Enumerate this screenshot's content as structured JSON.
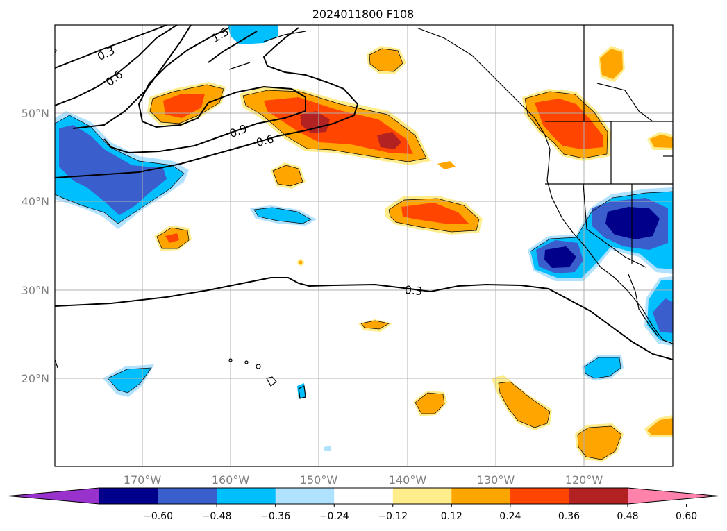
{
  "map": {
    "title": "2024011800 F108",
    "lon_ticks": [
      {
        "value": -170,
        "label": "170°W"
      },
      {
        "value": -160,
        "label": "160°W"
      },
      {
        "value": -150,
        "label": "150°W"
      },
      {
        "value": -140,
        "label": "140°W"
      },
      {
        "value": -130,
        "label": "130°W"
      },
      {
        "value": -120,
        "label": "120°W"
      }
    ],
    "lat_ticks": [
      {
        "value": 50,
        "label": "50°N"
      },
      {
        "value": 40,
        "label": "40°N"
      },
      {
        "value": 30,
        "label": "30°N"
      },
      {
        "value": 20,
        "label": "20°N"
      }
    ],
    "lon_range": [
      -180,
      -110
    ],
    "lat_range": [
      10,
      60
    ],
    "grid": true,
    "contour_labels": [
      "0.3",
      "0.6",
      "0.9",
      "0.6",
      "0.3",
      "1.5"
    ],
    "colorbar": {
      "tick_labels": [
        "−0.60",
        "−0.48",
        "−0.36",
        "−0.24",
        "−0.12",
        "0.12",
        "0.24",
        "0.36",
        "0.48",
        "0.60"
      ],
      "colors": [
        "#9932cc",
        "#00008b",
        "#3a5fcd",
        "#00bfff",
        "#b0e2ff",
        "#ffffff",
        "#ffec8b",
        "#ffa500",
        "#ff4500",
        "#b22222",
        "#ff82ab"
      ],
      "extend": "both"
    }
  }
}
